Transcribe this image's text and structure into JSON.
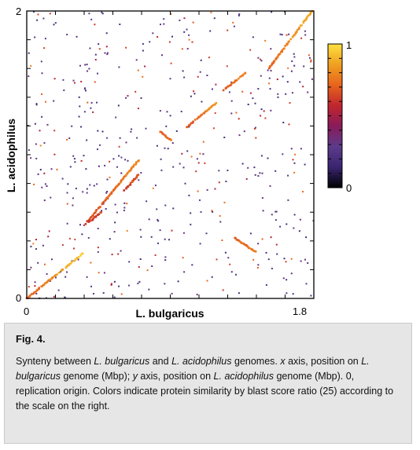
{
  "figure": {
    "label": "Fig. 4.",
    "caption": [
      {
        "t": "Synteny between ",
        "i": false
      },
      {
        "t": "L. bulgaricus",
        "i": true
      },
      {
        "t": " and ",
        "i": false
      },
      {
        "t": "L. acidophilus",
        "i": true
      },
      {
        "t": " genomes. ",
        "i": false
      },
      {
        "t": "x",
        "i": true
      },
      {
        "t": " axis, position on ",
        "i": false
      },
      {
        "t": "L. bulgaricus",
        "i": true
      },
      {
        "t": " genome (Mbp); ",
        "i": false
      },
      {
        "t": "y",
        "i": true
      },
      {
        "t": " axis, position on ",
        "i": false
      },
      {
        "t": "L. acidophilus",
        "i": true
      },
      {
        "t": " genome (Mbp). 0, replication origin. Colors indicate protein similarity by blast score ratio (25) according to the scale on the right.",
        "i": false
      }
    ]
  },
  "chart_data": {
    "type": "scatter",
    "title": "",
    "xlabel": "L. bulgaricus",
    "ylabel": "L. acidophilus",
    "xlim": [
      0,
      1.85
    ],
    "ylim": [
      0,
      2
    ],
    "x_tick_labels": [
      "0",
      "1.8"
    ],
    "y_tick_labels": [
      "0",
      "2"
    ],
    "grid": false,
    "colorbar": {
      "min_label": "0",
      "max_label": "1",
      "stops": [
        "#000000",
        "#3a2470",
        "#5c3b8a",
        "#8a1a5a",
        "#c0262e",
        "#e8641c",
        "#f0a020",
        "#ffe040"
      ]
    },
    "syntenic_segments": [
      {
        "x": [
          0.0,
          0.36
        ],
        "y": [
          0.0,
          0.31
        ],
        "score": [
          0.7,
          0.95
        ]
      },
      {
        "x": [
          0.38,
          0.72
        ],
        "y": [
          0.52,
          0.96
        ],
        "score": [
          0.65,
          0.8
        ]
      },
      {
        "x": [
          0.86,
          0.93
        ],
        "y": [
          1.16,
          1.1
        ],
        "score": [
          0.7,
          0.75
        ]
      },
      {
        "x": [
          1.03,
          1.22
        ],
        "y": [
          1.19,
          1.36
        ],
        "score": [
          0.68,
          0.82
        ]
      },
      {
        "x": [
          1.27,
          1.41
        ],
        "y": [
          1.45,
          1.57
        ],
        "score": [
          0.7,
          0.8
        ]
      },
      {
        "x": [
          1.56,
          1.84
        ],
        "y": [
          1.6,
          2.0
        ],
        "score": [
          0.7,
          0.9
        ]
      },
      {
        "x": [
          1.34,
          1.48
        ],
        "y": [
          0.42,
          0.32
        ],
        "score": [
          0.7,
          0.78
        ]
      },
      {
        "x": [
          0.63,
          0.72
        ],
        "y": [
          0.75,
          0.86
        ],
        "score": [
          0.6,
          0.7
        ]
      },
      {
        "x": [
          0.4,
          0.48
        ],
        "y": [
          0.53,
          0.6
        ],
        "score": [
          0.6,
          0.66
        ]
      }
    ],
    "scattered_hits_count": 500
  }
}
